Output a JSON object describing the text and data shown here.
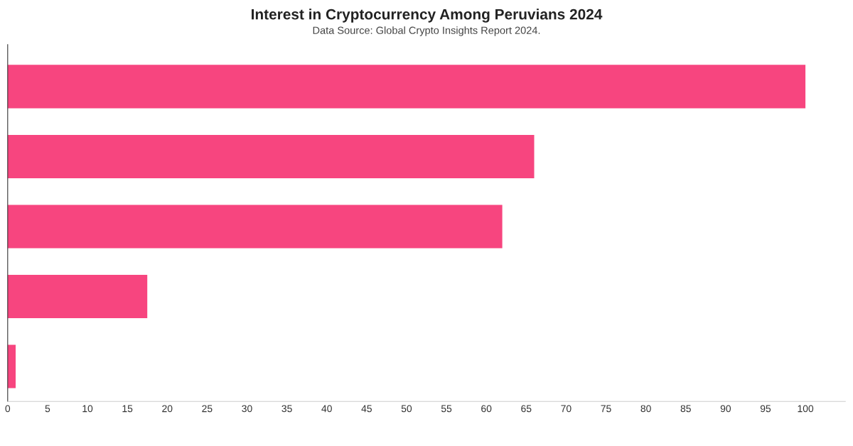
{
  "chart_data": {
    "type": "bar",
    "orientation": "horizontal",
    "title": "Interest in Cryptocurrency Among Peruvians 2024",
    "annotations": [
      "Data Source: Global Crypto Insights Report 2024."
    ],
    "categories": [
      null,
      null,
      null,
      null,
      null
    ],
    "values": [
      100,
      66,
      62,
      17.5,
      1
    ],
    "color": "#f7457f",
    "xlim": [
      0,
      105
    ],
    "xticks": [
      0,
      5,
      10,
      15,
      20,
      25,
      30,
      35,
      40,
      45,
      50,
      55,
      60,
      65,
      70,
      75,
      80,
      85,
      90,
      95,
      100
    ],
    "grid": false
  }
}
